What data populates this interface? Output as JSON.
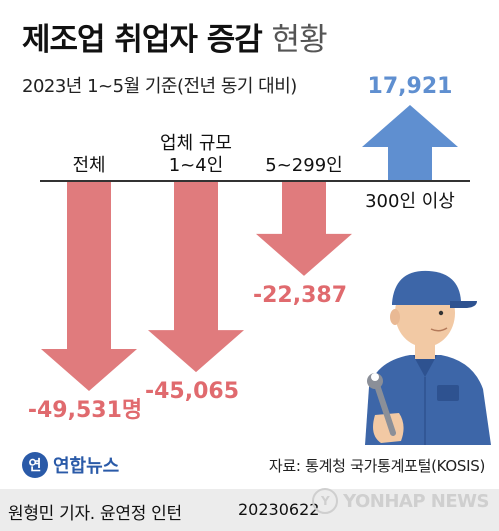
{
  "header": {
    "title": "제조업 취업자 증감",
    "title_suffix": "현황",
    "subtitle": "2023년 1~5월 기준(전년 동기 대비)"
  },
  "chart_data": {
    "type": "bar",
    "categories": [
      "전체",
      "업체 규모\n1~4인",
      "5~299인",
      "300인 이상"
    ],
    "values": [
      -49531,
      -45065,
      -22387,
      17921
    ],
    "value_labels": [
      "-49,531명",
      "-45,065",
      "-22,387",
      "17,921"
    ],
    "unit": "명",
    "title": "제조업 취업자 증감 현황",
    "subtitle": "2023년 1~5월 기준(전년 동기 대비)",
    "ylim": [
      -49531,
      17921
    ],
    "colors": {
      "negative": "#e07b7d",
      "positive": "#5f8fd0",
      "negative_label": "#e06a6e",
      "positive_label": "#5f8fd0"
    }
  },
  "source": "자료: 통계청 국가통계포털(KOSIS)",
  "logo": {
    "mark": "연",
    "text": "연합뉴스"
  },
  "byline": "원형민 기자. 윤연정 인턴",
  "date": "20230622",
  "watermark": {
    "mark": "Y",
    "text": "YONHAP NEWS"
  },
  "icons": [
    "mechanic-illustration",
    "wrench-icon"
  ]
}
